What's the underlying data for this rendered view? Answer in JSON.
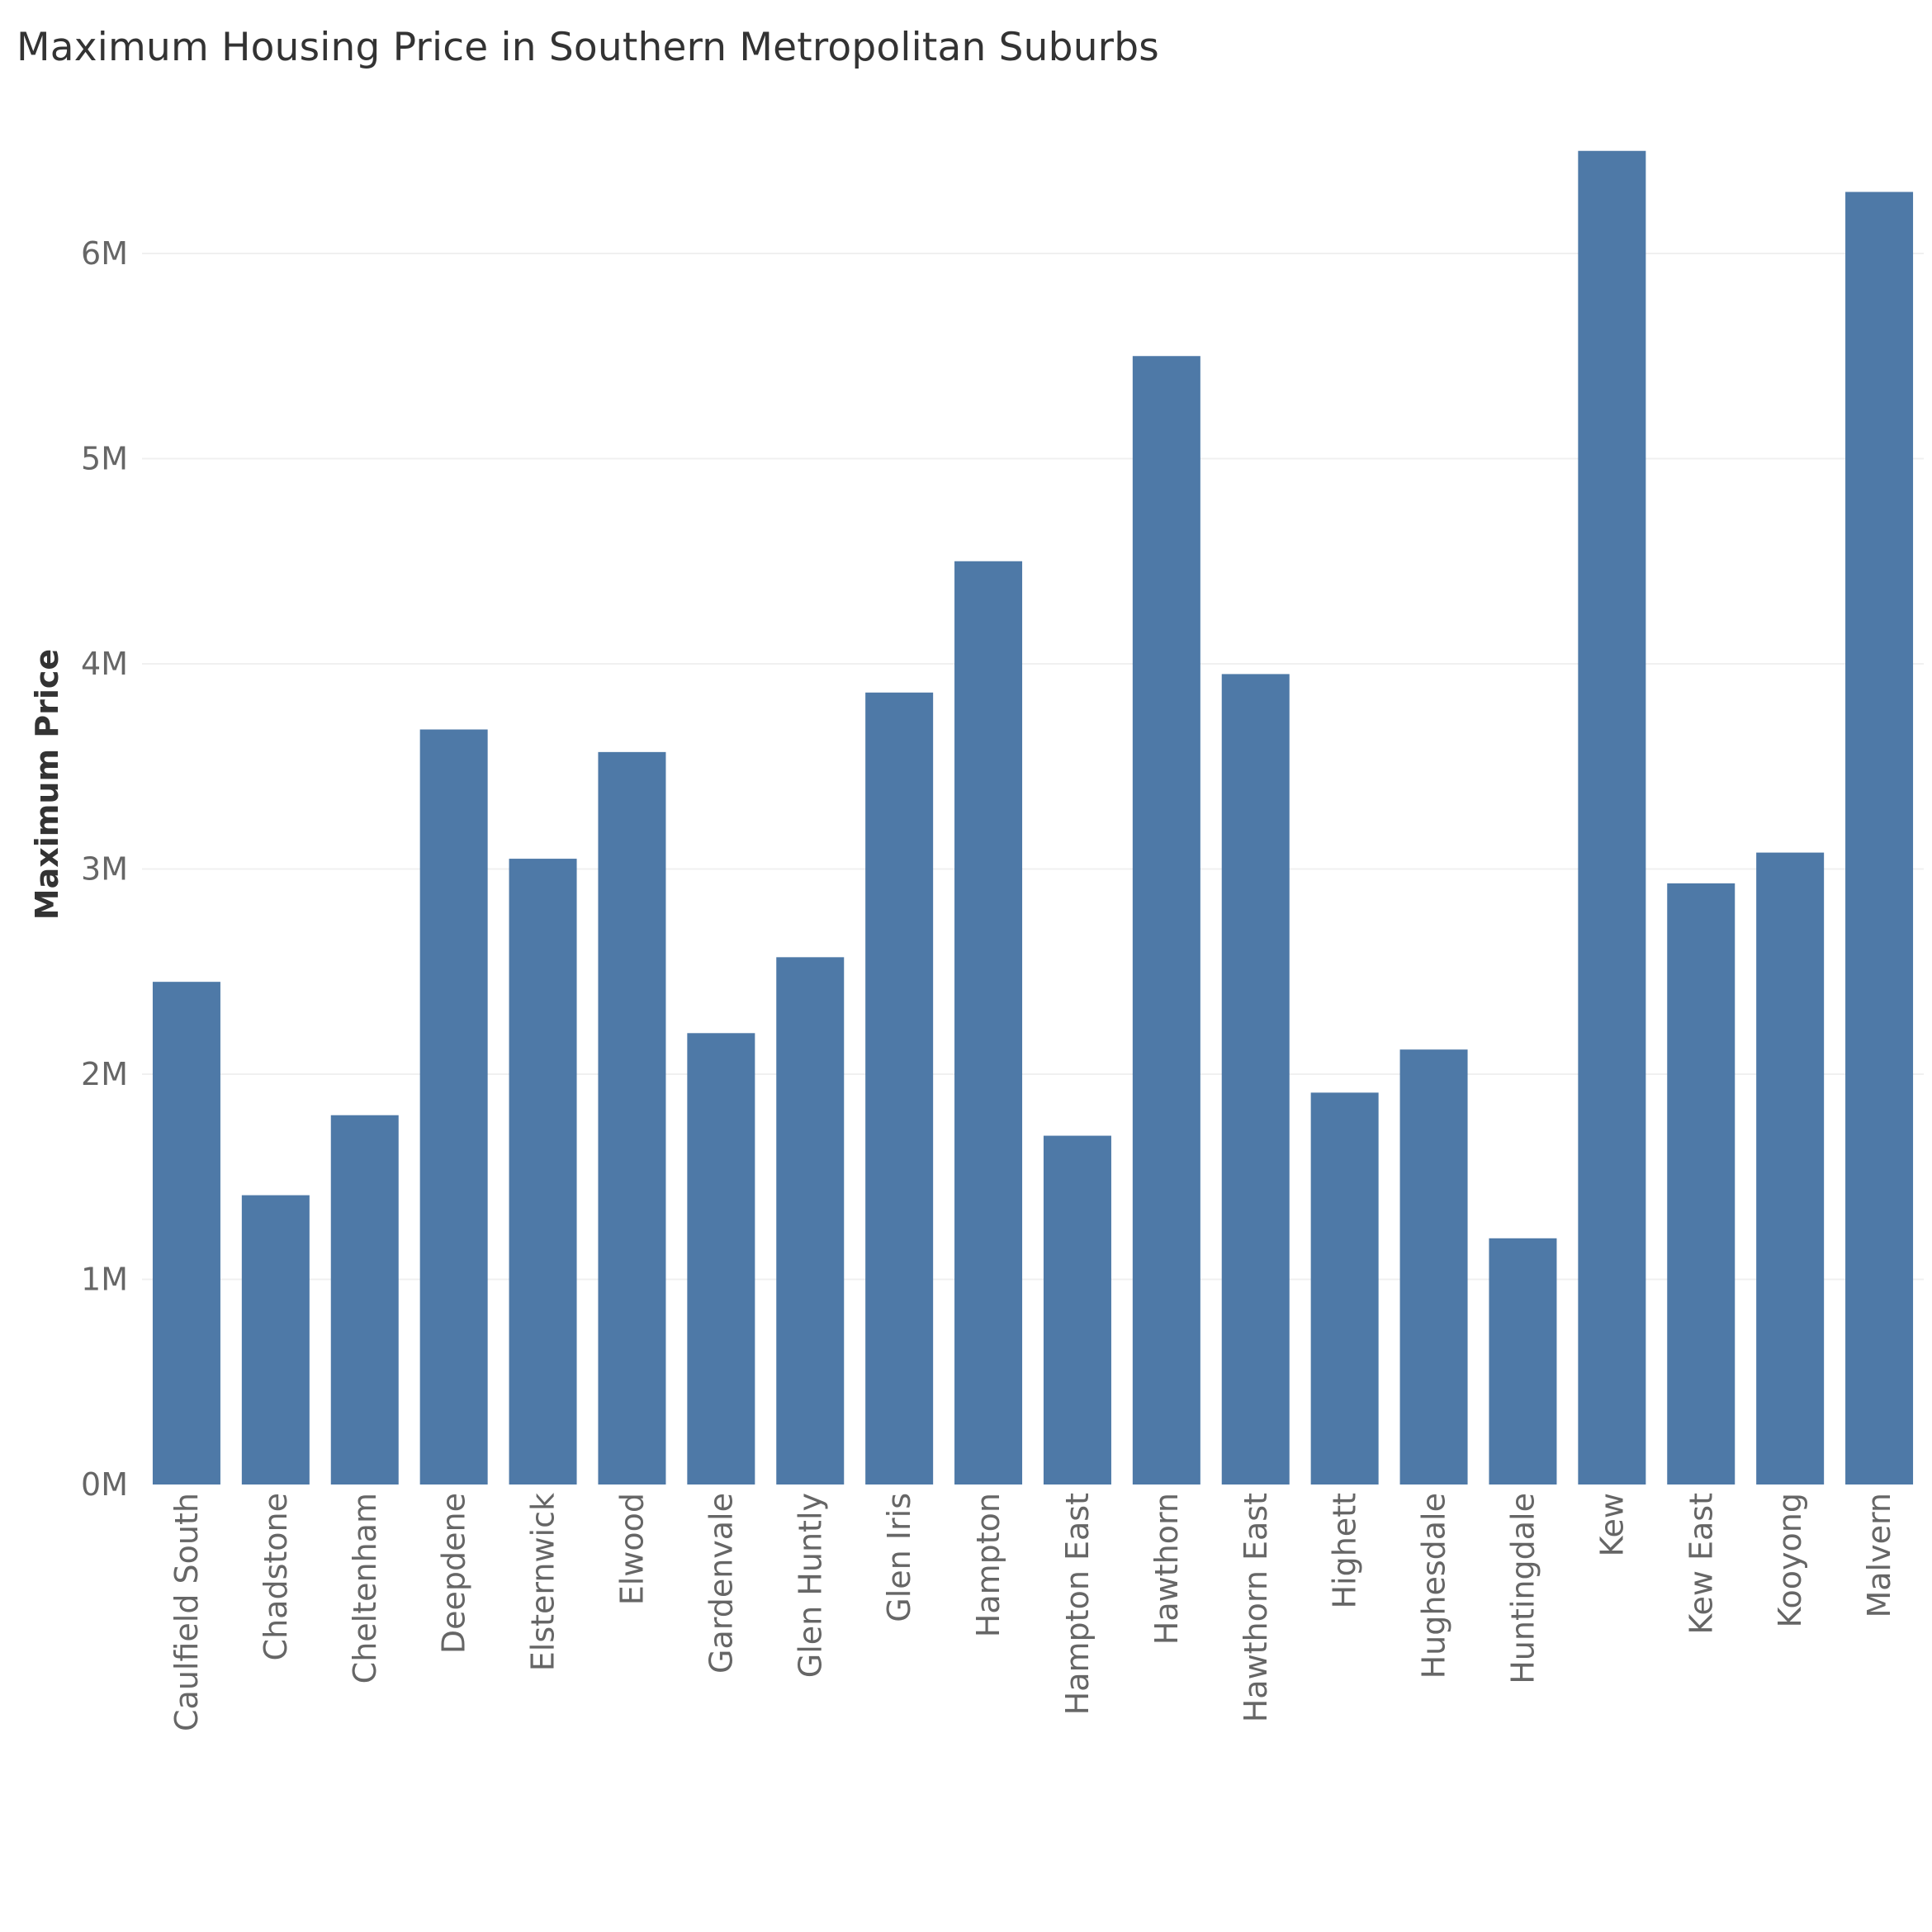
{
  "chart_data": {
    "type": "bar",
    "title": "Maximum Housing Price in Southern Metropolitan Suburbs",
    "xlabel": "",
    "ylabel": "Maximum Price",
    "categories": [
      "Caulfield South",
      "Chadstone",
      "Cheltenham",
      "Deepdene",
      "Elsternwick",
      "Elwood",
      "Gardenvale",
      "Glen Huntly",
      "Glen Iris",
      "Hampton",
      "Hampton East",
      "Hawthorn",
      "Hawthorn East",
      "Highett",
      "Hughesdale",
      "Huntingdale",
      "Kew",
      "Kew East",
      "Kooyong",
      "Malvern"
    ],
    "values": [
      2450000,
      1410000,
      1800000,
      3680000,
      3050000,
      3570000,
      2200000,
      2570000,
      3860000,
      4500000,
      1700000,
      5500000,
      3950000,
      1910000,
      2120000,
      1200000,
      6500000,
      2930000,
      3080000,
      6300000
    ],
    "yticks": [
      {
        "value": 0,
        "label": "0M"
      },
      {
        "value": 1000000,
        "label": "1M"
      },
      {
        "value": 2000000,
        "label": "2M"
      },
      {
        "value": 3000000,
        "label": "3M"
      },
      {
        "value": 4000000,
        "label": "4M"
      },
      {
        "value": 5000000,
        "label": "5M"
      },
      {
        "value": 6000000,
        "label": "6M"
      }
    ],
    "ylim": [
      0,
      6500000
    ],
    "grid": true,
    "bar_color": "#4e79a7"
  }
}
